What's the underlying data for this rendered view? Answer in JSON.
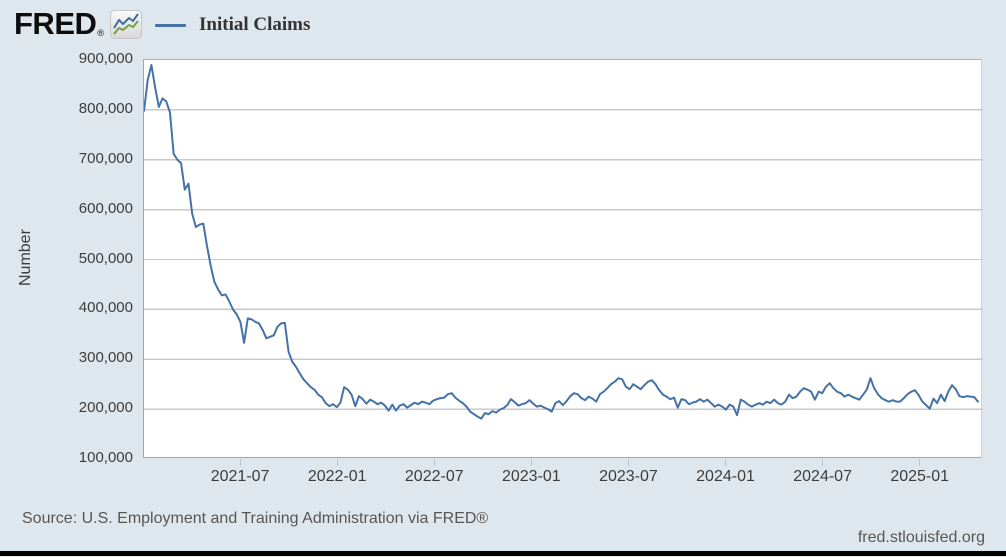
{
  "header": {
    "logo_text": "FRED",
    "logo_registered": "®"
  },
  "legend": {
    "label": "Initial Claims",
    "swatch_color": "#4572a7"
  },
  "footer": {
    "source": "Source: U.S. Employment and Training Administration via FRED®",
    "site": "fred.stlouisfed.org"
  },
  "colors": {
    "background": "#dfe7ee",
    "plot_background": "#ffffff",
    "line": "#4572a7",
    "gridline": "#c9c9c9",
    "axis_text": "#3c3c3c",
    "footer_text": "#565656",
    "bottom_bar": "#000000",
    "icon_blue": "#3d6d9e",
    "icon_green": "#74a042"
  },
  "chart_data": {
    "type": "line",
    "title": "",
    "xlabel": "",
    "ylabel": "Number",
    "frequency": "weekly",
    "x_start": "2021-01",
    "x_end": "2025-04",
    "x_axis_span_months": 51.85,
    "grid": true,
    "legend_position": "top-left",
    "ylim": [
      100000,
      900000
    ],
    "y_tick_step": 100000,
    "y_tick_labels": [
      "900,000",
      "800,000",
      "700,000",
      "600,000",
      "500,000",
      "400,000",
      "300,000",
      "200,000",
      "100,000"
    ],
    "x_ticks": [
      {
        "label": "2021-07",
        "months_from_start": 6
      },
      {
        "label": "2022-01",
        "months_from_start": 12
      },
      {
        "label": "2022-07",
        "months_from_start": 18
      },
      {
        "label": "2023-01",
        "months_from_start": 24
      },
      {
        "label": "2023-07",
        "months_from_start": 30
      },
      {
        "label": "2024-01",
        "months_from_start": 36
      },
      {
        "label": "2024-07",
        "months_from_start": 42
      },
      {
        "label": "2025-01",
        "months_from_start": 48
      }
    ],
    "series": [
      {
        "name": "Initial Claims",
        "color": "#4572a7",
        "values": [
          798000,
          860000,
          890000,
          845000,
          806000,
          823000,
          817000,
          795000,
          712000,
          700000,
          693000,
          640000,
          652000,
          592000,
          565000,
          570000,
          572000,
          527000,
          487000,
          455000,
          440000,
          428000,
          430000,
          416000,
          400000,
          390000,
          375000,
          333000,
          382000,
          380000,
          375000,
          372000,
          359000,
          342000,
          345000,
          348000,
          365000,
          372000,
          373000,
          315000,
          295000,
          285000,
          272000,
          260000,
          252000,
          244000,
          239000,
          229000,
          224000,
          212000,
          206000,
          210000,
          204000,
          213000,
          244000,
          239000,
          229000,
          206000,
          226000,
          220000,
          211000,
          219000,
          215000,
          210000,
          213000,
          207000,
          197000,
          209000,
          197000,
          207000,
          210000,
          203000,
          208000,
          213000,
          210000,
          215000,
          213000,
          210000,
          217000,
          220000,
          222000,
          223000,
          230000,
          232000,
          223000,
          217000,
          212000,
          205000,
          195000,
          190000,
          185000,
          181000,
          192000,
          190000,
          196000,
          193000,
          199000,
          202000,
          208000,
          220000,
          214000,
          207000,
          210000,
          212000,
          218000,
          211000,
          205000,
          207000,
          203000,
          200000,
          195000,
          212000,
          216000,
          208000,
          216000,
          226000,
          232000,
          230000,
          222000,
          218000,
          225000,
          221000,
          215000,
          230000,
          235000,
          242000,
          250000,
          255000,
          262000,
          260000,
          245000,
          240000,
          250000,
          245000,
          240000,
          248000,
          255000,
          258000,
          250000,
          238000,
          229000,
          225000,
          220000,
          223000,
          203000,
          220000,
          218000,
          210000,
          213000,
          215000,
          220000,
          215000,
          219000,
          212000,
          205000,
          209000,
          205000,
          199000,
          209000,
          205000,
          188000,
          219000,
          215000,
          209000,
          205000,
          209000,
          212000,
          209000,
          215000,
          212000,
          219000,
          212000,
          209000,
          215000,
          229000,
          222000,
          225000,
          235000,
          242000,
          239000,
          235000,
          219000,
          235000,
          232000,
          245000,
          252000,
          242000,
          235000,
          232000,
          225000,
          229000,
          225000,
          222000,
          219000,
          229000,
          239000,
          262000,
          242000,
          230000,
          222000,
          218000,
          215000,
          218000,
          215000,
          215000,
          222000,
          230000,
          235000,
          238000,
          228000,
          215000,
          208000,
          201000,
          221000,
          212000,
          229000,
          216000,
          235000,
          248000,
          240000,
          226000,
          224000,
          226000,
          225000,
          224000,
          215000
        ]
      }
    ]
  }
}
